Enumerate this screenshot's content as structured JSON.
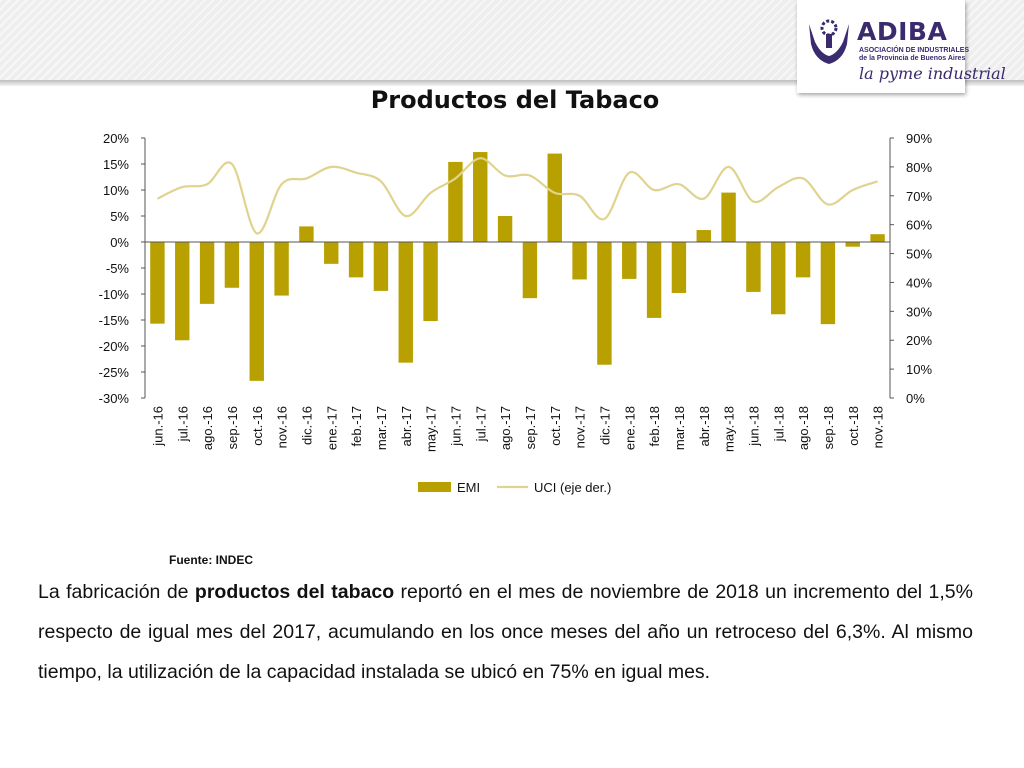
{
  "brand": {
    "name": "ADIBA",
    "line1": "ASOCIACIÓN DE INDUSTRIALES",
    "line2": "de la Provincia de Buenos Aires",
    "tagline": "la pyme industrial",
    "color": "#3a2a6e"
  },
  "chart_data": {
    "type": "bar",
    "title": "Productos del Tabaco",
    "categories": [
      "jun.-16",
      "jul.-16",
      "ago.-16",
      "sep.-16",
      "oct.-16",
      "nov.-16",
      "dic.-16",
      "ene.-17",
      "feb.-17",
      "mar.-17",
      "abr.-17",
      "may.-17",
      "jun.-17",
      "jul.-17",
      "ago.-17",
      "sep.-17",
      "oct.-17",
      "nov.-17",
      "dic.-17",
      "ene.-18",
      "feb.-18",
      "mar.-18",
      "abr.-18",
      "may.-18",
      "jun.-18",
      "jul.-18",
      "ago.-18",
      "sep.-18",
      "oct.-18",
      "nov.-18"
    ],
    "series": [
      {
        "name": "EMI",
        "type": "bar",
        "axis": "left",
        "color": "#b8a000",
        "values": [
          -15.7,
          -18.9,
          -11.9,
          -8.8,
          -26.7,
          -10.3,
          3.0,
          -4.2,
          -6.8,
          -9.4,
          -23.2,
          -15.2,
          15.4,
          17.3,
          5.0,
          -10.8,
          17.0,
          -7.2,
          -23.6,
          -7.1,
          -14.6,
          -9.8,
          2.3,
          9.5,
          -9.6,
          -13.9,
          -6.8,
          -15.8,
          -0.9,
          1.5
        ]
      },
      {
        "name": "UCI (eje der.)",
        "type": "line",
        "axis": "right",
        "color": "#e0d38f",
        "values": [
          69,
          73,
          74,
          81,
          57,
          74,
          76,
          80,
          78,
          75,
          63,
          71,
          76,
          83,
          77,
          77,
          71,
          70,
          62,
          78,
          72,
          74,
          69,
          80,
          68,
          73,
          76,
          67,
          72,
          75
        ]
      }
    ],
    "ylim": [
      -30,
      20
    ],
    "yticks": [
      "-30%",
      "-25%",
      "-20%",
      "-15%",
      "-10%",
      "-5%",
      "0%",
      "5%",
      "10%",
      "15%",
      "20%"
    ],
    "y2lim": [
      0,
      90
    ],
    "y2ticks": [
      "0%",
      "10%",
      "20%",
      "30%",
      "40%",
      "50%",
      "60%",
      "70%",
      "80%",
      "90%"
    ],
    "legend_position": "bottom",
    "grid": false
  },
  "source": "Fuente: INDEC",
  "paragraph": {
    "before": "La fabricación de ",
    "bold": "productos del tabaco",
    "after": " reportó en el mes de noviembre de 2018 un incremento del 1,5% respecto de igual mes del 2017, acumulando en los once meses del año un retroceso del 6,3%. Al mismo tiempo, la utilización de la capacidad instalada se ubicó en 75% en igual mes."
  }
}
